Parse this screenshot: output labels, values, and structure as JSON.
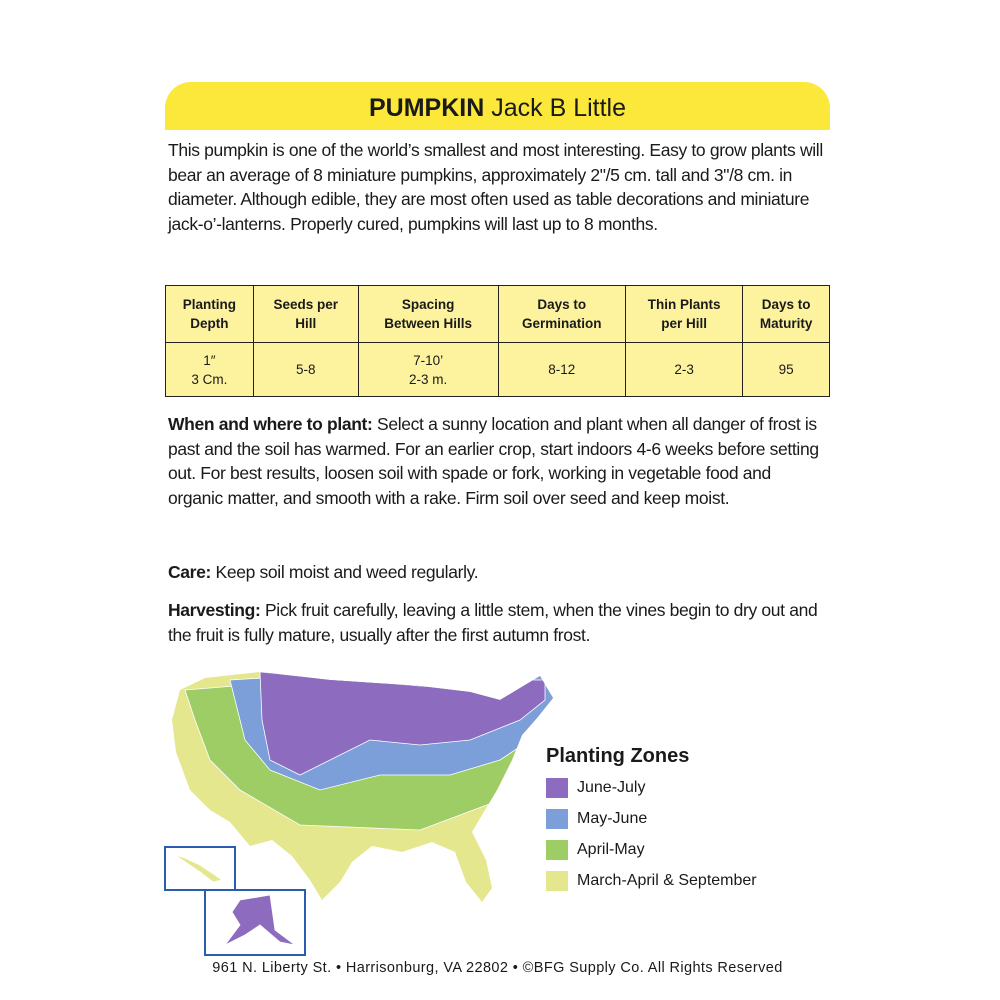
{
  "header": {
    "title_bold": "PUMPKIN",
    "title_rest": "Jack B Little"
  },
  "intro": "This pumpkin is one of the world’s smallest and most interesting. Easy to grow plants will bear an average of 8 miniature pumpkins, approximately 2\"/5 cm. tall and 3\"/8 cm. in diameter. Although edible, they are most often used as table decorations and miniature jack-o’-lanterns. Properly cured, pumpkins will last up to 8 months.",
  "table": {
    "headers": [
      "Planting\nDepth",
      "Seeds per\nHill",
      "Spacing\nBetween Hills",
      "Days to\nGermination",
      "Thin Plants\nper Hill",
      "Days to\nMaturity"
    ],
    "rows": [
      [
        "1″\n3 Cm.",
        "5-8",
        "7-10’\n2-3 m.",
        "8-12",
        "2-3",
        "95"
      ]
    ]
  },
  "sections": [
    {
      "label": "When and where to plant:",
      "text": "Select a sunny location and plant when all danger of frost is past and the soil has warmed. For an earlier crop, start indoors 4-6 weeks before setting out. For best results, loosen soil with spade or fork, working in vegetable food and organic matter, and smooth with a rake. Firm soil over seed and keep moist."
    },
    {
      "label": "Care:",
      "text": "Keep soil moist and weed regularly."
    },
    {
      "label": "Harvesting:",
      "text": "Pick fruit carefully, leaving a little stem, when the vines begin to dry out and the fruit is fully mature, usually after the first autumn frost."
    }
  ],
  "legend": {
    "title": "Planting Zones",
    "items": [
      {
        "label": "June-July",
        "color": "#8d6cbf"
      },
      {
        "label": "May-June",
        "color": "#7c9fd9"
      },
      {
        "label": "April-May",
        "color": "#9dcd64"
      },
      {
        "label": "March-April & September",
        "color": "#e5e78f"
      }
    ]
  },
  "footer": "961 N. Liberty St. • Harrisonburg, VA 22802 • ©BFG Supply Co. All Rights Reserved"
}
